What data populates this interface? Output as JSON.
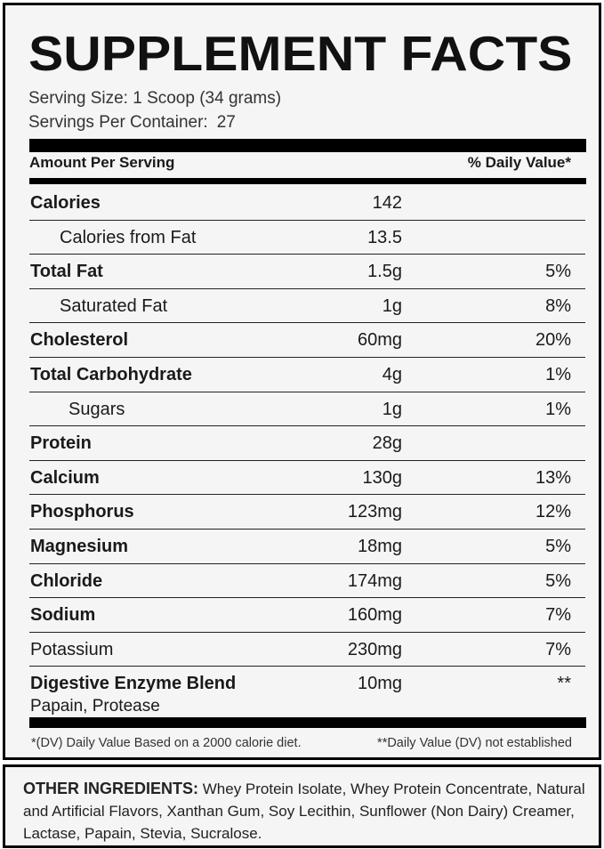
{
  "title": "SUPPLEMENT FACTS",
  "serving_size": "Serving Size: 1 Scoop (34 grams)",
  "servings_per_container_label": "Servings Per Container:",
  "servings_per_container_value": "27",
  "header": {
    "amount_per_serving": "Amount Per Serving",
    "daily_value": "% Daily Value*"
  },
  "rows": [
    {
      "name": "Calories",
      "amount": "142",
      "dv": "",
      "bold": true,
      "indent": 0
    },
    {
      "name": "Calories from Fat",
      "amount": "13.5",
      "dv": "",
      "bold": false,
      "indent": 1
    },
    {
      "name": "Total Fat",
      "amount": "1.5g",
      "dv": "5%",
      "bold": true,
      "indent": 0
    },
    {
      "name": "Saturated Fat",
      "amount": "1g",
      "dv": "8%",
      "bold": false,
      "indent": 1
    },
    {
      "name": "Cholesterol",
      "amount": "60mg",
      "dv": "20%",
      "bold": true,
      "indent": 0
    },
    {
      "name": "Total Carbohydrate",
      "amount": "4g",
      "dv": "1%",
      "bold": true,
      "indent": 0
    },
    {
      "name": "Sugars",
      "amount": "1g",
      "dv": "1%",
      "bold": false,
      "indent": 2
    },
    {
      "name": "Protein",
      "amount": "28g",
      "dv": "",
      "bold": true,
      "indent": 0
    },
    {
      "name": "Calcium",
      "amount": "130g",
      "dv": "13%",
      "bold": true,
      "indent": 0
    },
    {
      "name": "Phosphorus",
      "amount": "123mg",
      "dv": "12%",
      "bold": true,
      "indent": 0
    },
    {
      "name": "Magnesium",
      "amount": "18mg",
      "dv": "5%",
      "bold": true,
      "indent": 0
    },
    {
      "name": "Chloride",
      "amount": "174mg",
      "dv": "5%",
      "bold": true,
      "indent": 0
    },
    {
      "name": "Sodium",
      "amount": "160mg",
      "dv": "7%",
      "bold": true,
      "indent": 0
    },
    {
      "name": "Potassium",
      "amount": "230mg",
      "dv": "7%",
      "bold": false,
      "indent": 0
    },
    {
      "name": "Digestive Enzyme Blend",
      "amount": "10mg",
      "dv": "**",
      "bold": true,
      "indent": 0,
      "subtext": "Papain, Protease"
    }
  ],
  "footnotes": {
    "left": "*(DV) Daily Value Based on a 2000 calorie diet.",
    "right": "**Daily Value (DV) not established"
  },
  "other_ingredients": {
    "label": "OTHER INGREDIENTS:",
    "text": " Whey Protein Isolate, Whey Protein Concentrate, Natural and Artificial Flavors, Xanthan Gum, Soy Lecithin, Sunflower (Non Dairy) Creamer, Lactase, Papain, Stevia, Sucralose."
  }
}
